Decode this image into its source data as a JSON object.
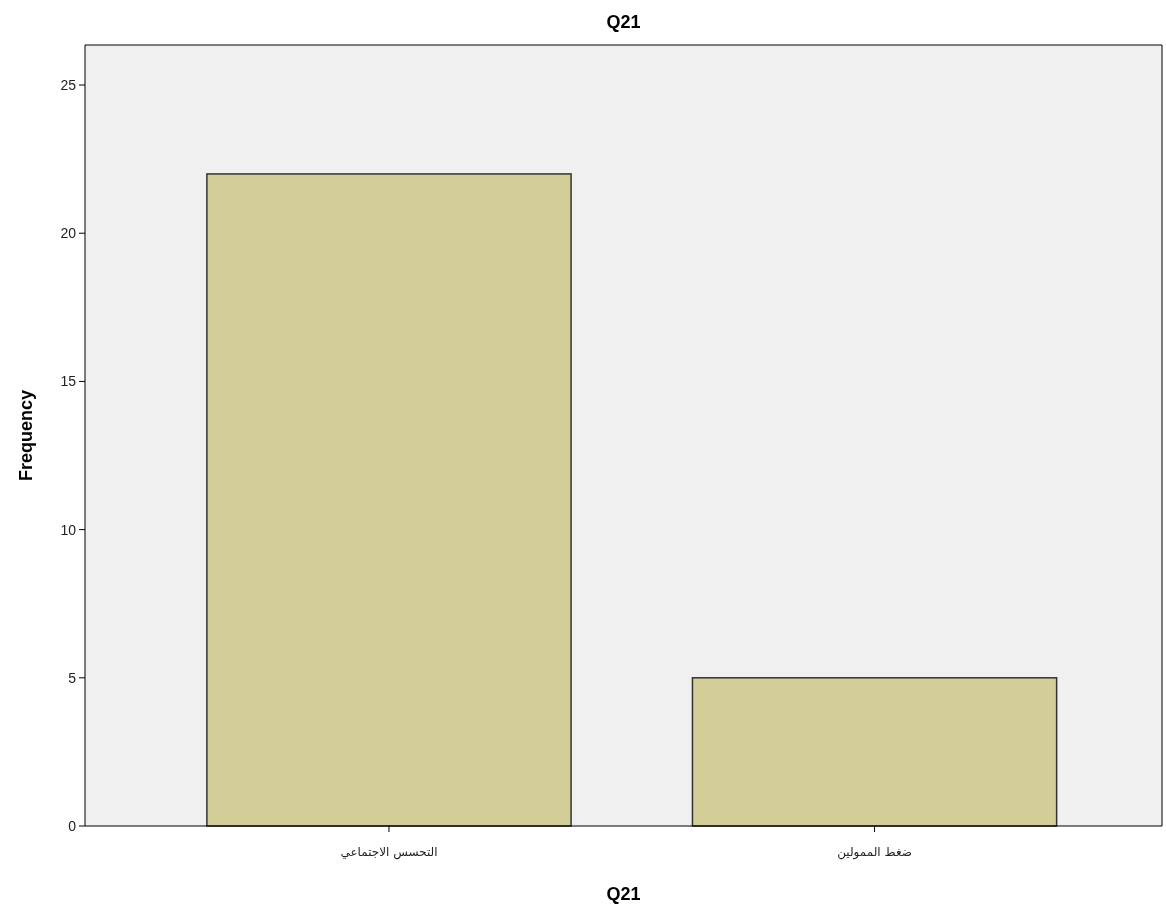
{
  "chart_data": {
    "type": "bar",
    "title": "Q21",
    "xlabel": "Q21",
    "ylabel": "Frequency",
    "categories": [
      "التحسس الاجتماعي",
      "ضغط الممولين"
    ],
    "values": [
      22,
      5
    ],
    "color": "#d3ce98",
    "ylim": [
      0,
      26.35
    ],
    "yticks": [
      0,
      5,
      10,
      15,
      20,
      25
    ],
    "grid": false
  }
}
